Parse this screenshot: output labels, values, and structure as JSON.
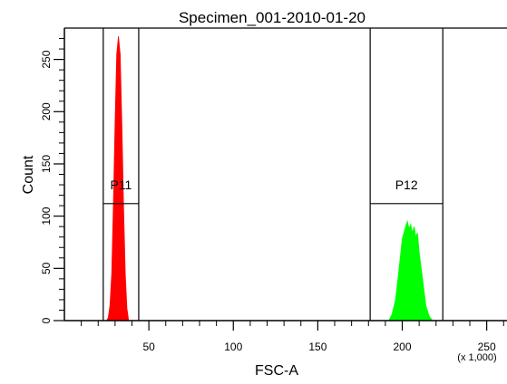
{
  "chart_data": {
    "type": "area",
    "title": "Specimen_001-2010-01-20",
    "xlabel": "FSC-A",
    "ylabel": "Count",
    "x_scale_note": "(x 1,000)",
    "xlim": [
      0,
      262
    ],
    "ylim": [
      0,
      280
    ],
    "x_ticks": [
      50,
      100,
      150,
      200,
      250
    ],
    "y_ticks": [
      0,
      50,
      100,
      150,
      200,
      250
    ],
    "x_minor_step": 10,
    "y_minor_step": 10,
    "grid": false,
    "series": [
      {
        "color": "#ff0000",
        "points": [
          [
            25,
            0
          ],
          [
            26,
            3
          ],
          [
            27,
            15
          ],
          [
            28,
            45
          ],
          [
            29,
            110
          ],
          [
            30,
            190
          ],
          [
            31,
            255
          ],
          [
            32,
            272
          ],
          [
            33,
            255
          ],
          [
            34,
            190
          ],
          [
            35,
            110
          ],
          [
            36,
            45
          ],
          [
            37,
            12
          ],
          [
            38,
            0
          ]
        ]
      },
      {
        "color": "#00ff00",
        "points": [
          [
            192,
            0
          ],
          [
            194,
            6
          ],
          [
            196,
            20
          ],
          [
            198,
            48
          ],
          [
            200,
            78
          ],
          [
            202,
            90
          ],
          [
            203,
            95
          ],
          [
            204,
            88
          ],
          [
            205,
            92
          ],
          [
            206,
            84
          ],
          [
            207,
            90
          ],
          [
            208,
            80
          ],
          [
            209,
            84
          ],
          [
            210,
            66
          ],
          [
            212,
            40
          ],
          [
            214,
            14
          ],
          [
            216,
            4
          ],
          [
            218,
            0
          ]
        ]
      }
    ],
    "gates": [
      {
        "label": "P11",
        "x_start": 23,
        "x_end": 44,
        "y_bar": 112
      },
      {
        "label": "P12",
        "x_start": 181,
        "x_end": 224,
        "y_bar": 112
      }
    ]
  }
}
